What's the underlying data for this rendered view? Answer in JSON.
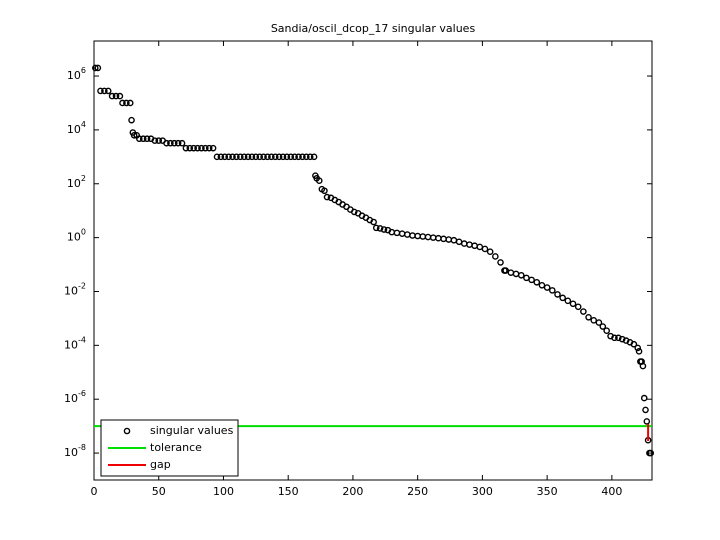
{
  "chart_data": {
    "type": "scatter",
    "title": "Sandia/oscil_dcop_17 singular values",
    "xlim": [
      0,
      431
    ],
    "xticks": [
      0,
      50,
      100,
      150,
      200,
      250,
      300,
      350,
      400
    ],
    "ylim": [
      1e-09,
      20000000.0
    ],
    "log_y": true,
    "yticks": [
      {
        "value": 1000000.0,
        "label": "10^6"
      },
      {
        "value": 10000.0,
        "label": "10^4"
      },
      {
        "value": 100.0,
        "label": "10^2"
      },
      {
        "value": 1,
        "label": "10^0"
      },
      {
        "value": 0.01,
        "label": "10^-2"
      },
      {
        "value": 0.0001,
        "label": "10^-4"
      },
      {
        "value": 1e-06,
        "label": "10^-6"
      },
      {
        "value": 1e-08,
        "label": "10^-8"
      }
    ],
    "legend": "lower left",
    "series": [
      {
        "name": "singular values",
        "color": "#000000",
        "style": "markers",
        "x": [
          1,
          3,
          5,
          8,
          11,
          14,
          17,
          20,
          22,
          25,
          28,
          29,
          30,
          31,
          33,
          35,
          38,
          41,
          44,
          47,
          50,
          53,
          56,
          59,
          62,
          65,
          68,
          71,
          74,
          77,
          80,
          83,
          86,
          89,
          92,
          95,
          98,
          101,
          104,
          107,
          110,
          113,
          116,
          119,
          122,
          125,
          128,
          131,
          134,
          137,
          140,
          143,
          146,
          149,
          152,
          155,
          158,
          161,
          164,
          167,
          170,
          171,
          172,
          174,
          176,
          178,
          180,
          183,
          186,
          189,
          192,
          195,
          198,
          201,
          204,
          207,
          210,
          213,
          216,
          218,
          221,
          224,
          227,
          230,
          234,
          238,
          242,
          246,
          250,
          254,
          258,
          262,
          266,
          270,
          274,
          278,
          282,
          286,
          290,
          294,
          298,
          302,
          306,
          310,
          314,
          317,
          318,
          322,
          326,
          330,
          334,
          338,
          342,
          346,
          350,
          354,
          358,
          362,
          366,
          370,
          374,
          378,
          382,
          386,
          390,
          393,
          396,
          399,
          402,
          405,
          408,
          411,
          414,
          417,
          420,
          421,
          422,
          423,
          424,
          425,
          426,
          427,
          428,
          429,
          430
        ],
        "values": [
          2000000.0,
          2000000.0,
          280000.0,
          280000.0,
          280000.0,
          180000.0,
          180000.0,
          180000.0,
          100000.0,
          100000.0,
          100000.0,
          23000.0,
          8000.0,
          6300.0,
          6300.0,
          4700.0,
          4700.0,
          4700.0,
          4700.0,
          4000.0,
          4000.0,
          4000.0,
          3200.0,
          3200.0,
          3200.0,
          3200.0,
          3200.0,
          2100.0,
          2100.0,
          2100.0,
          2100.0,
          2100.0,
          2100.0,
          2100.0,
          2100.0,
          1000.0,
          1000.0,
          1000.0,
          1000.0,
          1000.0,
          1000.0,
          1000.0,
          1000.0,
          1000.0,
          1000.0,
          1000.0,
          1000.0,
          1000.0,
          1000.0,
          1000.0,
          1000.0,
          1000.0,
          1000.0,
          1000.0,
          1000.0,
          1000.0,
          1000.0,
          1000.0,
          1000.0,
          1000.0,
          1000.0,
          200,
          160,
          130,
          63,
          55,
          32,
          30,
          25,
          21,
          17,
          14,
          11,
          9,
          8,
          6.5,
          5.5,
          4.5,
          3.8,
          2.3,
          2.2,
          2,
          1.9,
          1.6,
          1.5,
          1.4,
          1.3,
          1.2,
          1.15,
          1.1,
          1.05,
          1,
          0.95,
          0.9,
          0.85,
          0.8,
          0.7,
          0.6,
          0.55,
          0.5,
          0.45,
          0.38,
          0.3,
          0.2,
          0.12,
          0.06,
          0.06,
          0.05,
          0.045,
          0.04,
          0.032,
          0.027,
          0.022,
          0.017,
          0.014,
          0.011,
          0.0078,
          0.0058,
          0.0045,
          0.0035,
          0.0027,
          0.0018,
          0.0011,
          0.00085,
          0.0007,
          0.0005,
          0.00035,
          0.00022,
          0.00019,
          0.00019,
          0.00017,
          0.00015,
          0.00013,
          0.00011,
          8e-05,
          6e-05,
          2.5e-05,
          2.5e-05,
          1.7e-05,
          1.1e-06,
          4e-07,
          1.5e-07,
          3e-08,
          1e-08,
          1e-08
        ]
      },
      {
        "name": "tolerance",
        "color": "#00dd00",
        "style": "line",
        "x": [
          0,
          431
        ],
        "values": [
          1e-07,
          1e-07
        ]
      },
      {
        "name": "gap",
        "color": "#ee0000",
        "style": "line",
        "x": [
          428,
          428
        ],
        "values": [
          1.2e-07,
          2.8e-08
        ]
      }
    ]
  }
}
